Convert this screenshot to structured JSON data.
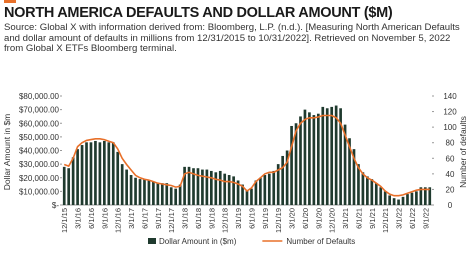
{
  "chart_data": {
    "type": "bar-line",
    "title": "NORTH AMERICA DEFAULTS AND DOLLAR AMOUNT ($M)",
    "subtitle": "Source: Global X with information derived from: Bloomberg, L.P. (n.d.). [Measuring North American  Defaults and dollar amount of defaults in millions from 12/31/2015 to 10/31/2022]. Retrieved on November 5, 2022 from Global X ETFs Bloomberg terminal.",
    "y_label": "Dollar Amount in $m",
    "y2_label": "Number of defaults",
    "categories": [
      "12/1/15",
      null,
      null,
      "3/1/16",
      null,
      null,
      "6/1/16",
      null,
      null,
      "9/1/16",
      null,
      null,
      "12/1/16",
      null,
      null,
      "3/1/17",
      null,
      null,
      "6/1/17",
      null,
      null,
      "9/1/17",
      null,
      null,
      "12/1/17",
      null,
      null,
      "3/1/18",
      null,
      null,
      "6/1/18",
      null,
      null,
      "9/1/18",
      null,
      null,
      "12/1/18",
      null,
      null,
      "3/1/19",
      null,
      null,
      "6/1/19",
      null,
      null,
      "9/1/19",
      null,
      null,
      "12/1/19",
      null,
      null,
      "3/1/20",
      null,
      null,
      "6/1/20",
      null,
      null,
      "9/1/20",
      null,
      null,
      "12/1/20",
      null,
      null,
      "3/1/21",
      null,
      null,
      "6/1/21",
      null,
      null,
      "9/1/21",
      null,
      null,
      "12/1/21",
      null,
      null,
      "3/1/22",
      null,
      null,
      "6/1/22",
      null,
      null,
      "9/1/22",
      null
    ],
    "series": [
      {
        "name": "Dollar Amount in ($m)",
        "color": "#1f3a2e",
        "type": "bar",
        "values": [
          28000,
          27000,
          35000,
          41000,
          44000,
          46000,
          46000,
          47000,
          46000,
          47000,
          46000,
          46000,
          39000,
          30000,
          26000,
          22000,
          20000,
          19000,
          19000,
          18000,
          17000,
          16000,
          16000,
          16000,
          13000,
          12000,
          15000,
          28000,
          28000,
          27000,
          27000,
          26000,
          26000,
          25000,
          24000,
          25000,
          23000,
          22000,
          21000,
          18000,
          15000,
          11000,
          12000,
          18000,
          20000,
          22000,
          23000,
          25000,
          30000,
          36000,
          40000,
          58000,
          60000,
          65000,
          70000,
          68000,
          66000,
          67000,
          72000,
          71000,
          72000,
          73000,
          71000,
          59000,
          49000,
          41000,
          30000,
          24000,
          21000,
          19000,
          16000,
          13000,
          10000,
          7000,
          5000,
          4000,
          6000,
          8000,
          9000,
          10000,
          13000,
          13000,
          13000
        ]
      },
      {
        "name": "Number of Defaults",
        "color": "#e8702a",
        "type": "line",
        "axis": "y2",
        "values": [
          52,
          50,
          60,
          75,
          80,
          83,
          84,
          85,
          85,
          84,
          82,
          80,
          72,
          60,
          52,
          45,
          38,
          35,
          33,
          32,
          30,
          28,
          27,
          26,
          25,
          23,
          24,
          40,
          42,
          40,
          38,
          37,
          36,
          35,
          33,
          32,
          30,
          30,
          29,
          27,
          24,
          18,
          22,
          30,
          35,
          40,
          42,
          42,
          45,
          48,
          55,
          75,
          95,
          105,
          110,
          112,
          112,
          113,
          115,
          115,
          115,
          112,
          105,
          90,
          75,
          60,
          48,
          40,
          35,
          32,
          28,
          24,
          18,
          14,
          12,
          12,
          13,
          15,
          17,
          19,
          20,
          20,
          20
        ]
      }
    ],
    "ylim": [
      0,
      80000
    ],
    "yticks": [
      {
        "value": 0,
        "label": "$-"
      },
      {
        "value": 10000,
        "label": "$10,000.00"
      },
      {
        "value": 20000,
        "label": "$20,000.00"
      },
      {
        "value": 30000,
        "label": "$30,000.00"
      },
      {
        "value": 40000,
        "label": "$40,000.00"
      },
      {
        "value": 50000,
        "label": "$50,000.00"
      },
      {
        "value": 60000,
        "label": "$60,000.00"
      },
      {
        "value": 70000,
        "label": "$70,000.00"
      },
      {
        "value": 80000,
        "label": "$80,000.00"
      }
    ],
    "y2lim": [
      0,
      140
    ],
    "y2ticks": [
      0,
      20,
      40,
      60,
      80,
      100,
      120,
      140
    ]
  }
}
